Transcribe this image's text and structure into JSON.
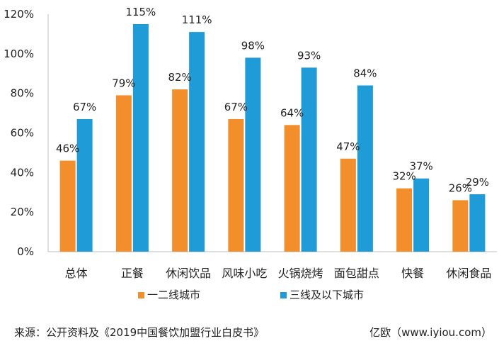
{
  "chart_data": {
    "type": "bar",
    "categories": [
      "总体",
      "正餐",
      "休闲饮品",
      "风味小吃",
      "火锅烧烤",
      "面包甜点",
      "快餐",
      "休闲食品"
    ],
    "series": [
      {
        "name": "一二线城市",
        "values": [
          46,
          79,
          82,
          67,
          64,
          47,
          32,
          26
        ],
        "labels": [
          "46%",
          "79%",
          "82%",
          "67%",
          "64%",
          "47%",
          "32%",
          "26%"
        ],
        "color": "#F28E2B"
      },
      {
        "name": "三线及以下城市",
        "values": [
          67,
          115,
          111,
          98,
          93,
          84,
          37,
          29
        ],
        "labels": [
          "67%",
          "115%",
          "111%",
          "98%",
          "93%",
          "84%",
          "37%",
          "29%"
        ],
        "color": "#1F9BD7"
      }
    ],
    "ylim": [
      0,
      120
    ],
    "yticks": [
      "0%",
      "20%",
      "40%",
      "60%",
      "80%",
      "100%",
      "120%"
    ],
    "ylabel": "",
    "xlabel": "",
    "grid": false,
    "legend_position": "bottom-center"
  },
  "footer": {
    "source": "来源：公开资料及《2019中国餐饮加盟行业白皮书》",
    "credit": "亿欧（www.iyiou.com）"
  }
}
